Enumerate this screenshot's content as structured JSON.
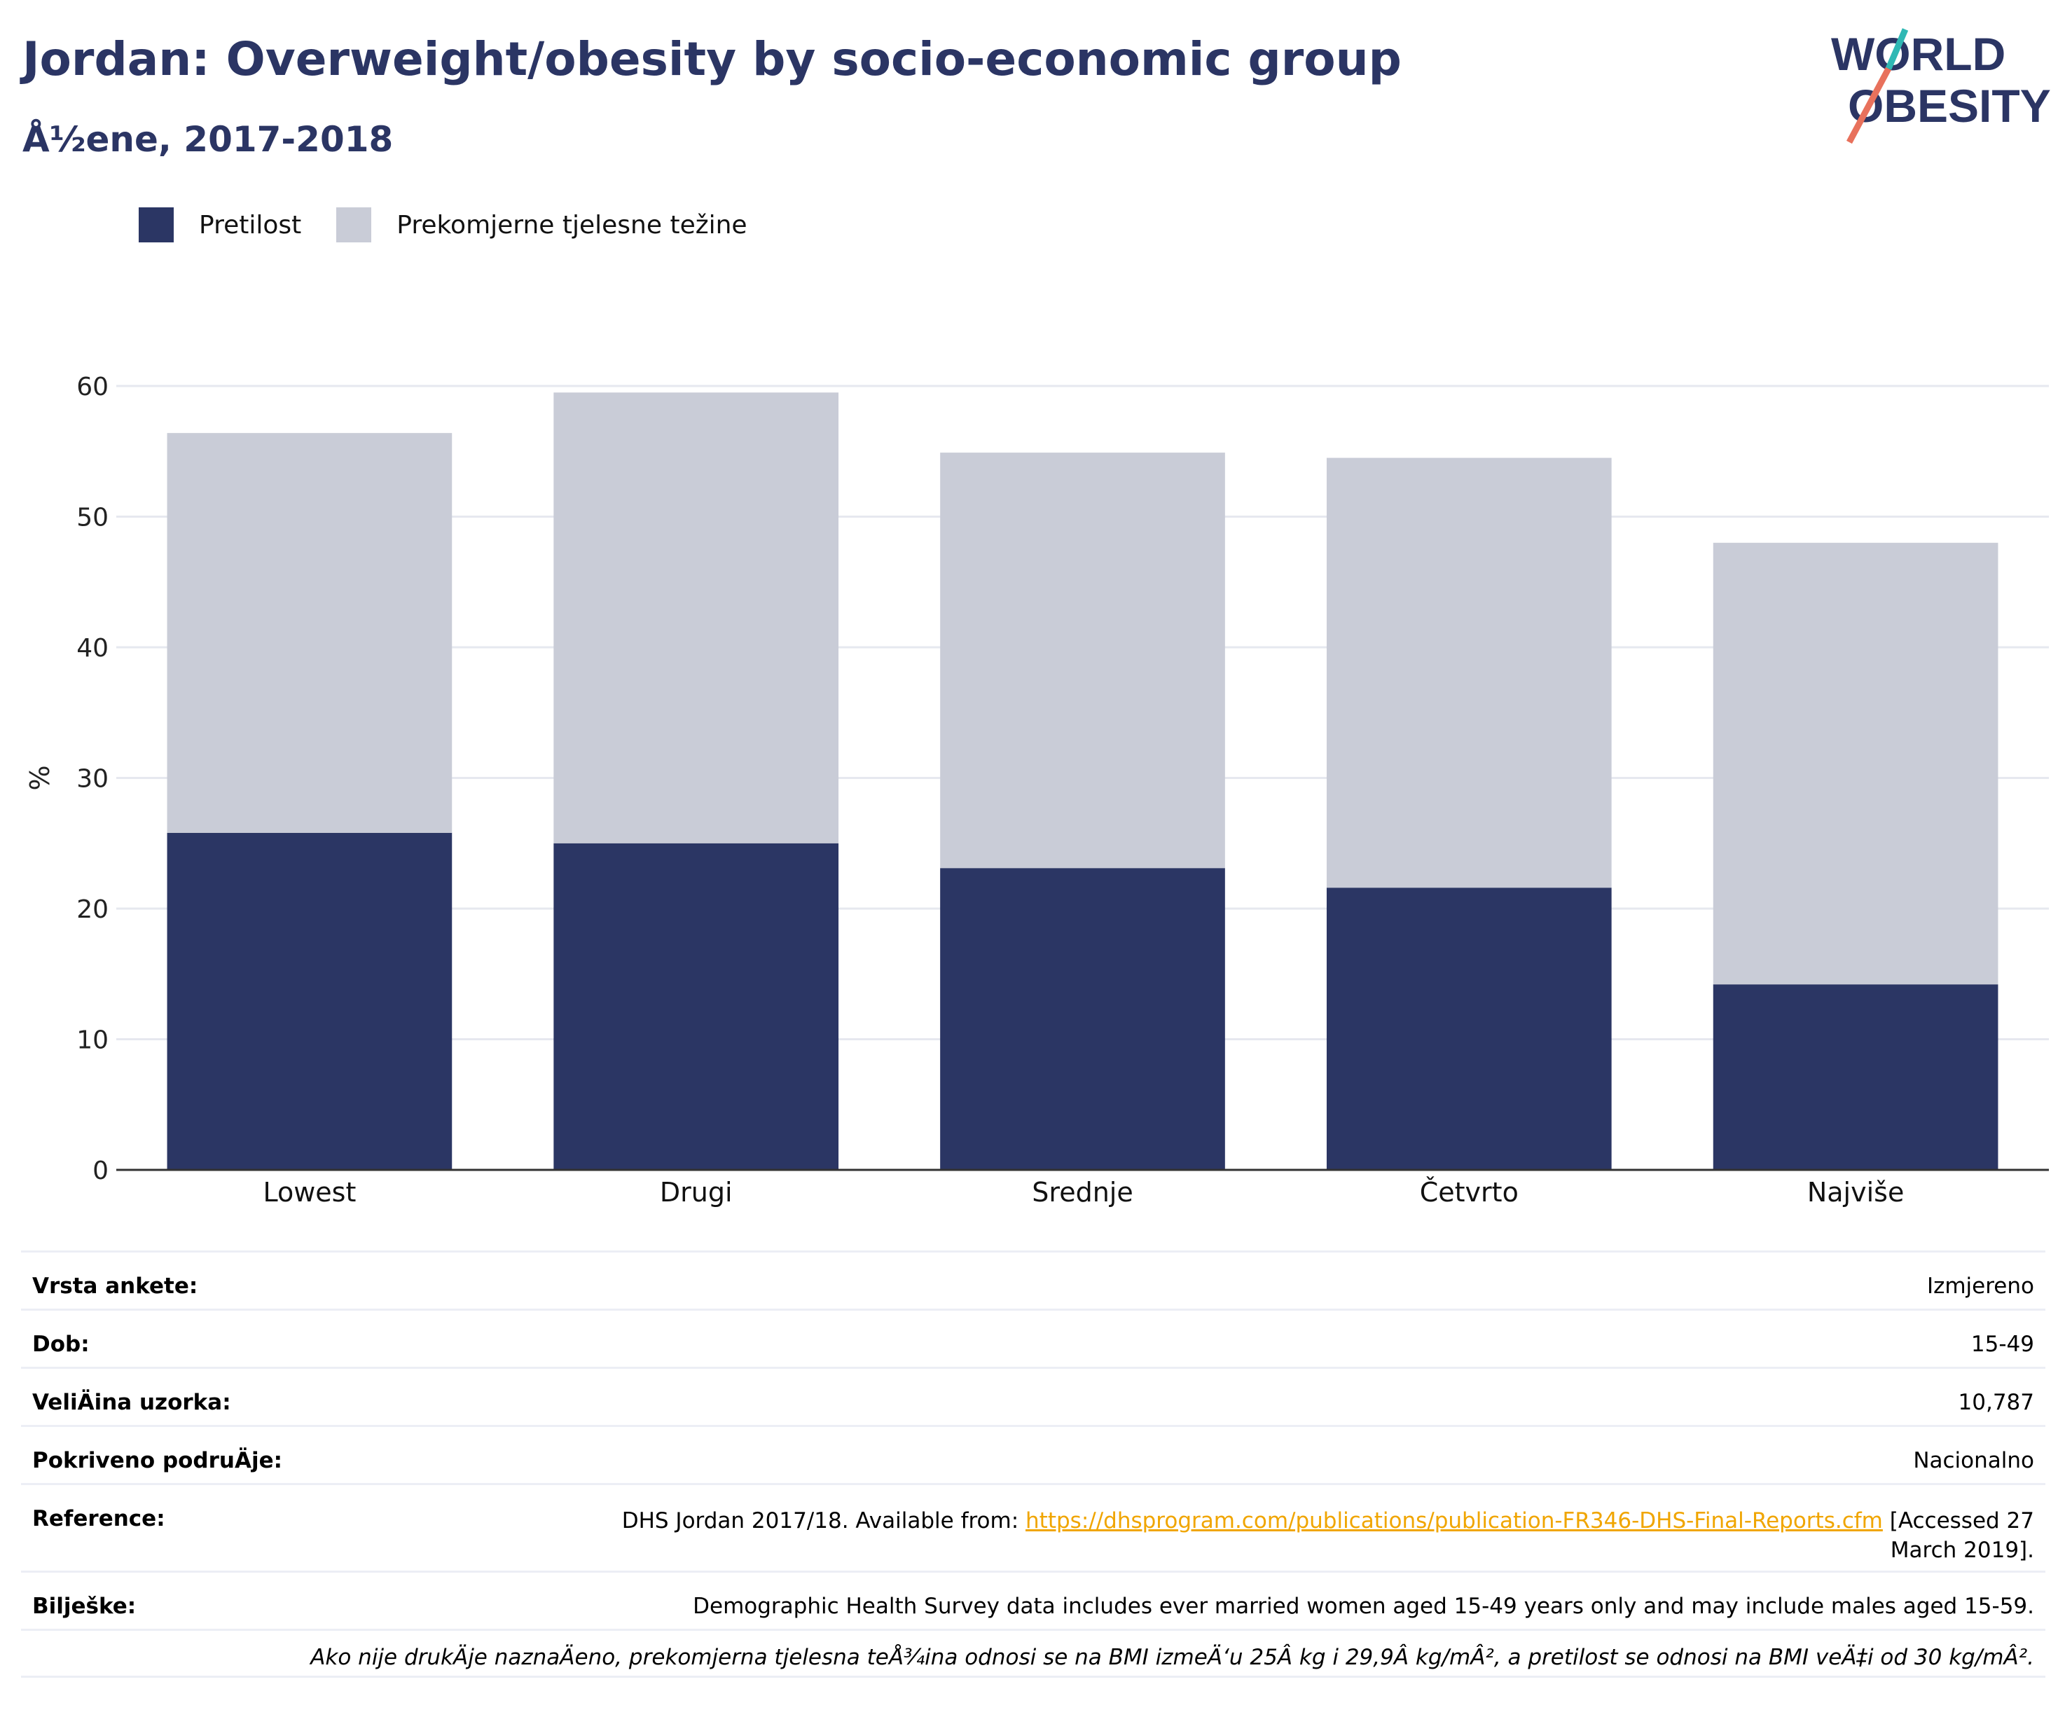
{
  "header": {
    "title": "Jordan: Overweight/obesity by socio-economic group",
    "subtitle": "Å½ene, 2017-2018"
  },
  "logo": {
    "line1": "WORLD",
    "line2": "OBESITY",
    "accent_colors": [
      "#2fb8b4",
      "#e8715c"
    ]
  },
  "colors": {
    "obesity": "#2b3664",
    "overweight": "#c9ccd7",
    "axis": "#333333",
    "grid": "#e6e8ef",
    "title": "#2b3564"
  },
  "legend": {
    "obesity_label": "Pretilost",
    "overweight_label": "Prekomjerne tjelesne težine"
  },
  "chart_data": {
    "type": "bar",
    "stacked": true,
    "categories": [
      "Lowest",
      "Drugi",
      "Srednje",
      "Četvrto",
      "Najviše"
    ],
    "series": [
      {
        "name": "Pretilost",
        "values": [
          25.8,
          25.0,
          23.1,
          21.6,
          14.2
        ]
      },
      {
        "name": "Prekomjerne tjelesne težine",
        "values": [
          30.6,
          34.5,
          31.8,
          32.9,
          33.8
        ]
      }
    ],
    "ylabel": "%",
    "ylim": [
      0,
      60
    ],
    "yticks": [
      0,
      10,
      20,
      30,
      40,
      50,
      60
    ],
    "grid": true,
    "legend_position": "top-left"
  },
  "meta": {
    "survey_type_label": "Vrsta ankete:",
    "survey_type_value": "Izmjereno",
    "age_label": "Dob:",
    "age_value": "15-49",
    "sample_label": "VeliÄ\u001fina uzorka:",
    "sample_value": "10,787",
    "coverage_label": "Pokriveno podruÄ\u001fje:",
    "coverage_value": "Nacionalno",
    "reference_label": "Reference:",
    "reference_prefix": "DHS Jordan 2017/18. Available from: ",
    "reference_link": "https://dhsprogram.com/publications/publication-FR346-DHS-Final-Reports.cfm",
    "reference_suffix": " [Accessed 27 March 2019].",
    "notes_label": "Bilješke:",
    "notes_value": "Demographic Health Survey data includes ever married women aged 15-49 years only and may include males aged 15-59.",
    "footnote": "Ako nije drukÄ\u001fje naznaÄ\u001feno, prekomjerna tjelesna teÅ¾ina odnosi se na BMI izmeÄ‘u 25Â kg i 29,9Â kg/mÂ², a pretilost se odnosi na BMI veÄ‡i od 30 kg/mÂ²."
  }
}
